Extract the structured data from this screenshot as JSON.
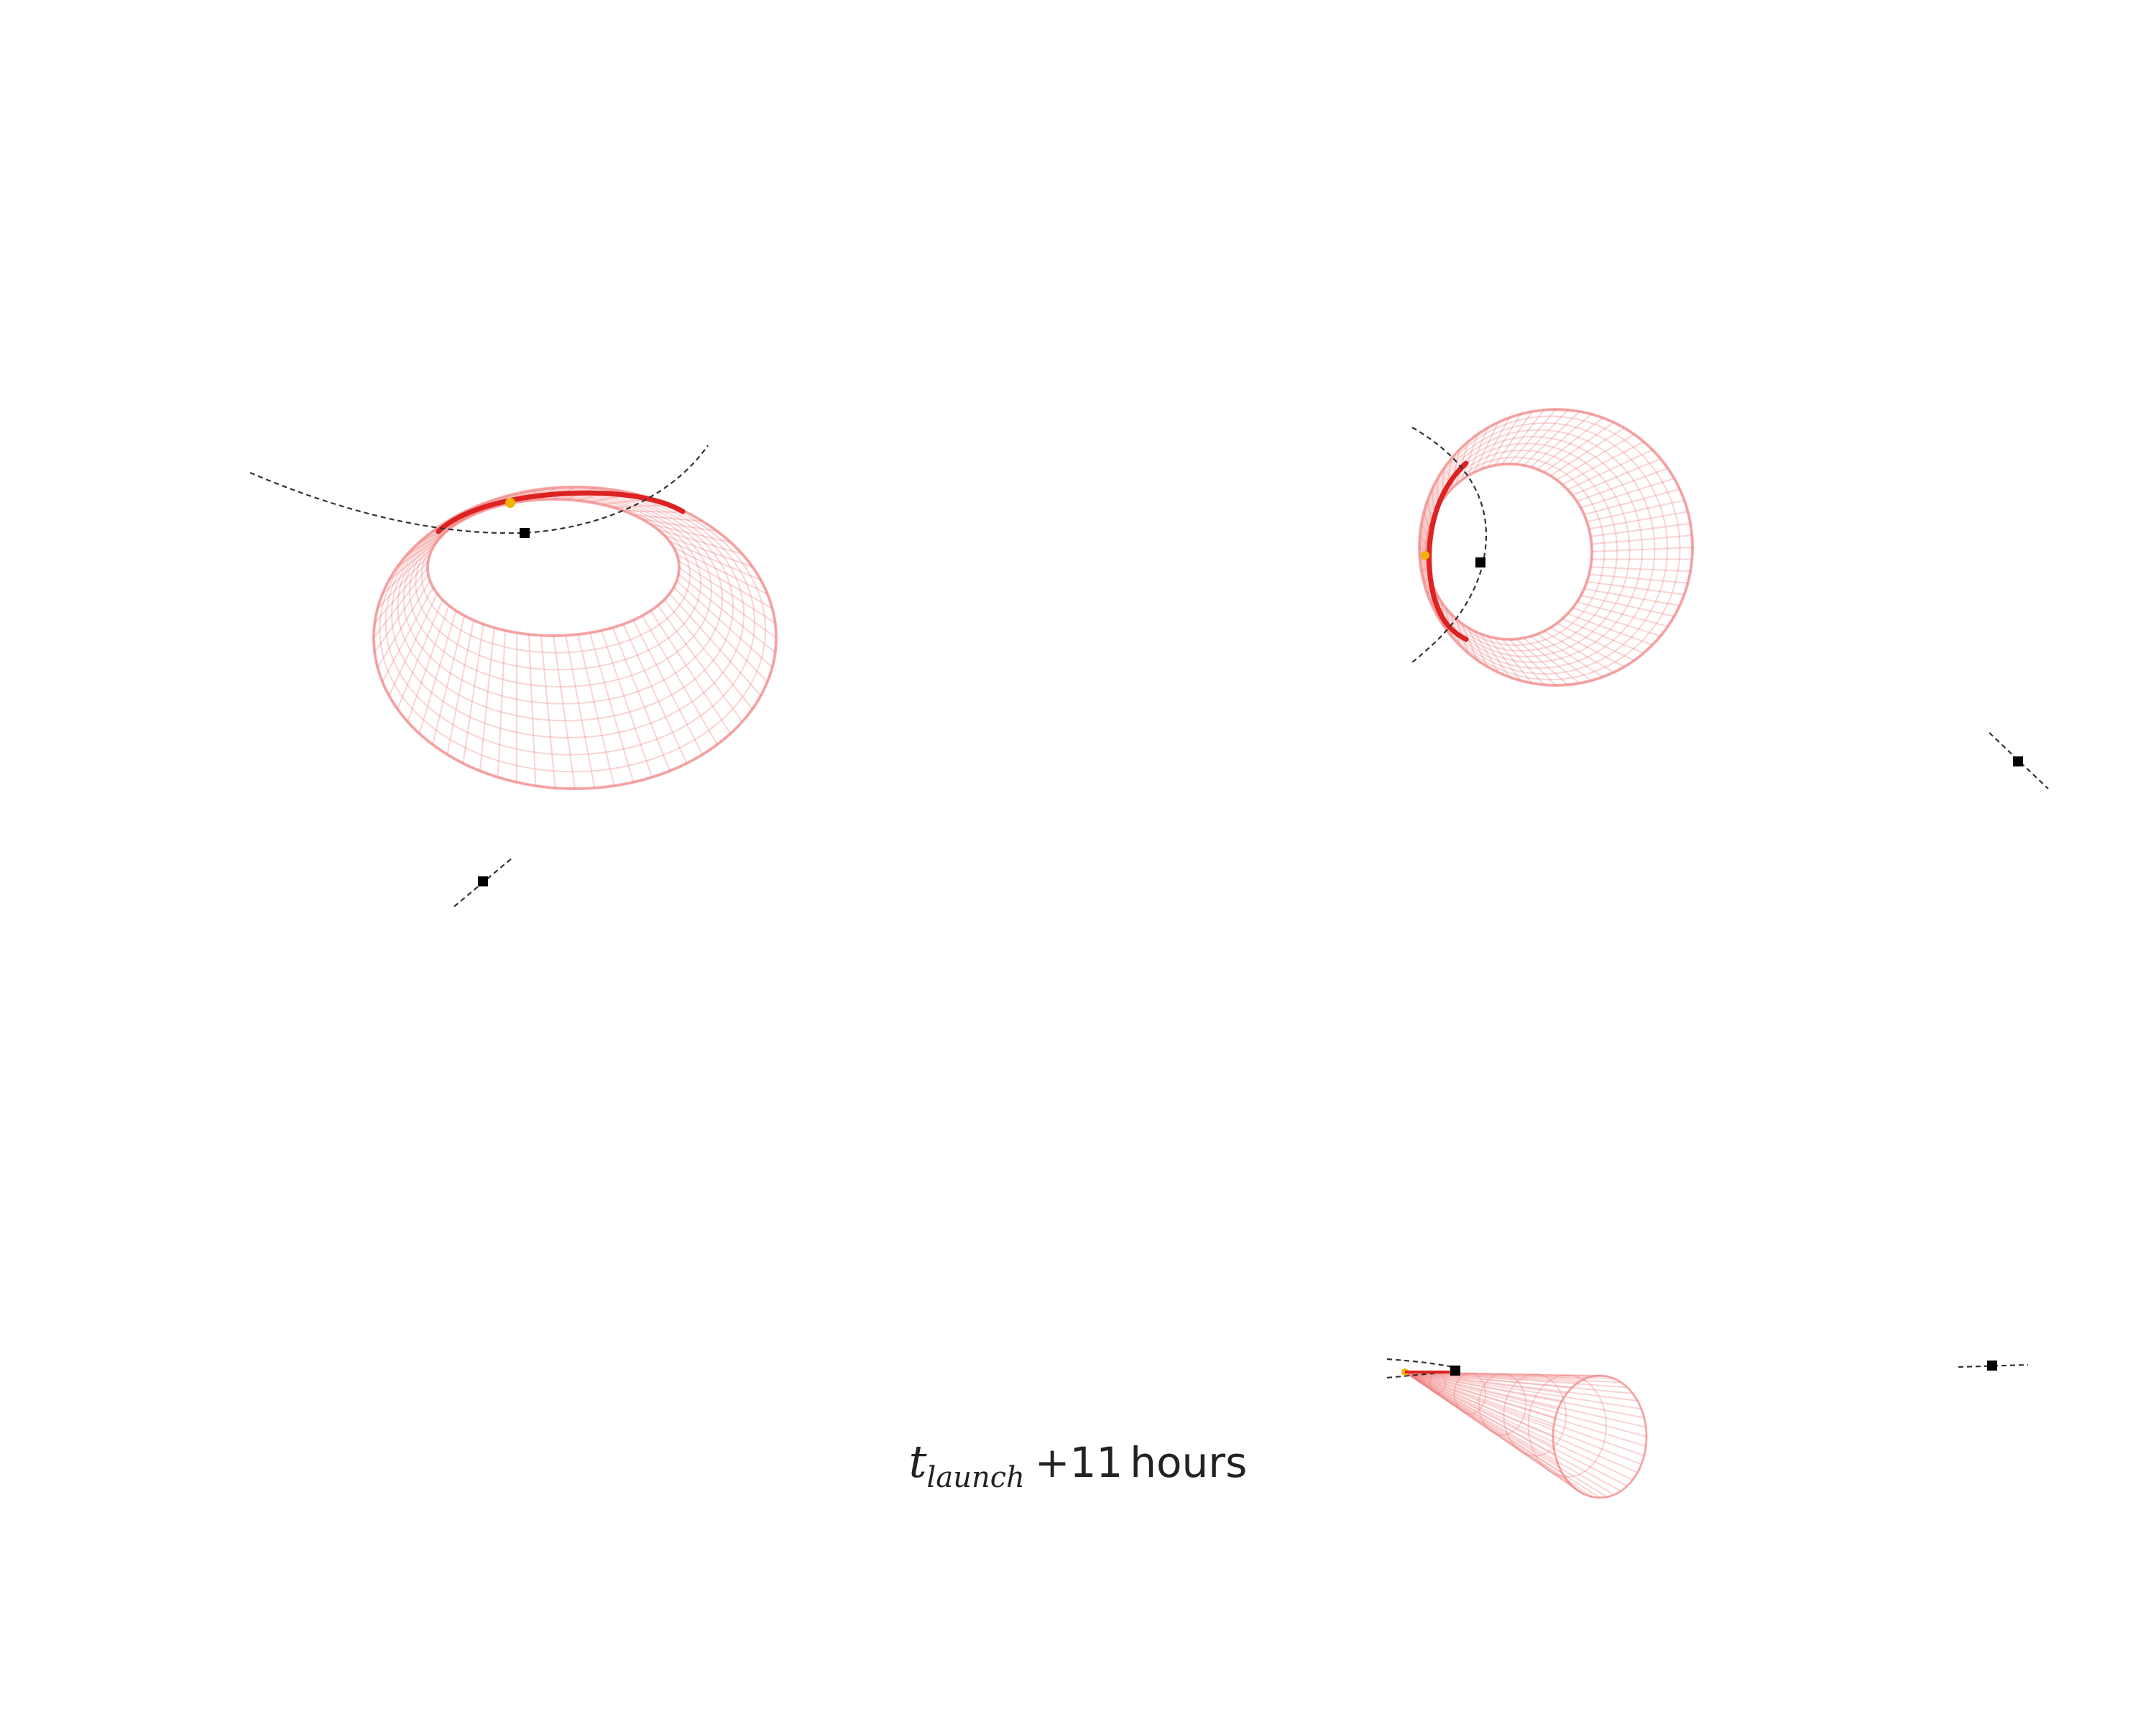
{
  "caption": {
    "t_symbol": "t",
    "t_subscript": "launch",
    "offset": "+11",
    "unit": "hours"
  },
  "colors": {
    "mesh": "#f07a7a",
    "arc": "#dd2222",
    "orbit": "#333333",
    "marker": "#000000",
    "highlight": "#f2b200"
  },
  "panels": [
    {
      "id": "top-left",
      "view": "oblique"
    },
    {
      "id": "top-right",
      "view": "face-on"
    },
    {
      "id": "bottom-right",
      "view": "edge-on"
    }
  ]
}
